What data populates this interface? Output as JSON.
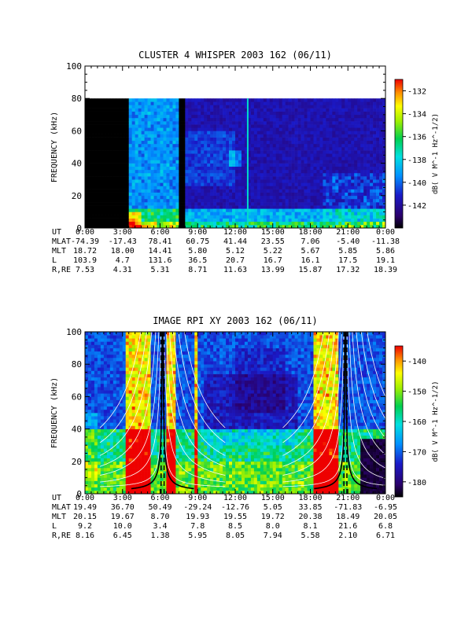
{
  "chart_data": [
    {
      "type": "heatmap",
      "title": "CLUSTER 4 WHISPER 2003 162 (06/11)",
      "ylabel": "FREQUENCY (kHz)",
      "ylim": [
        0,
        100
      ],
      "yticks": [
        "0",
        "20",
        "40",
        "60",
        "80",
        "100"
      ],
      "colorbar_label": "dB( V M^-1 Hz^-1/2)",
      "colorbar_range": [
        -144,
        -131
      ],
      "colorbar_ticks": [
        "-132",
        "-134",
        "-136",
        "-138",
        "-140",
        "-142"
      ],
      "data_ceiling_khz": 80,
      "no_data_interval_hours": [
        0,
        3.3
      ],
      "gap_interval_hours": [
        7.6,
        7.9
      ],
      "ephemeris": {
        "row_labels": [
          "UT",
          "MLAT",
          "MLT",
          "L",
          "R,RE"
        ],
        "UT": [
          "0:00",
          "3:00",
          "6:00",
          "9:00",
          "12:00",
          "15:00",
          "18:00",
          "21:00",
          "0:00"
        ],
        "MLAT": [
          "-74.39",
          "-17.43",
          "78.41",
          "60.75",
          "41.44",
          "23.55",
          "7.06",
          "-5.40",
          "-11.38"
        ],
        "MLT": [
          "18.72",
          "18.00",
          "14.41",
          "5.80",
          "5.12",
          "5.22",
          "5.67",
          "5.85",
          "5.86"
        ],
        "L": [
          "103.9",
          "4.7",
          "131.6",
          "36.5",
          "20.7",
          "16.7",
          "16.1",
          "17.5",
          "19.1"
        ],
        "R,RE": [
          "7.53",
          "4.31",
          "5.31",
          "8.71",
          "11.63",
          "13.99",
          "15.87",
          "17.32",
          "18.39"
        ]
      }
    },
    {
      "type": "heatmap",
      "title": "IMAGE RPI XY 2003 162 (06/11)",
      "ylabel": "FREQUENCY (kHz)",
      "ylim": [
        0,
        100
      ],
      "yticks": [
        "0",
        "20",
        "40",
        "60",
        "80",
        "100"
      ],
      "colorbar_label": "dB( V M^-1 Hz^-1/2)",
      "colorbar_range": [
        -185,
        -135
      ],
      "colorbar_ticks": [
        "-140",
        "-150",
        "-160",
        "-170",
        "-180"
      ],
      "perigee_hours": [
        6.2,
        20.8
      ],
      "ephemeris": {
        "row_labels": [
          "UT",
          "MLAT",
          "MLT",
          "L",
          "R,RE"
        ],
        "UT": [
          "0:00",
          "3:00",
          "6:00",
          "9:00",
          "12:00",
          "15:00",
          "18:00",
          "21:00",
          "0:00"
        ],
        "MLAT": [
          "19.49",
          "36.70",
          "50.49",
          "-29.24",
          "-12.76",
          "5.05",
          "33.85",
          "-71.83",
          "-6.95"
        ],
        "MLT": [
          "20.15",
          "19.67",
          "8.70",
          "19.93",
          "19.55",
          "19.72",
          "20.38",
          "18.49",
          "20.05"
        ],
        "L": [
          "9.2",
          "10.0",
          "3.4",
          "7.8",
          "8.5",
          "8.0",
          "8.1",
          "21.6",
          "6.8"
        ],
        "R,RE": [
          "8.16",
          "6.45",
          "1.38",
          "5.95",
          "8.05",
          "7.94",
          "5.58",
          "2.10",
          "6.71"
        ]
      }
    }
  ]
}
